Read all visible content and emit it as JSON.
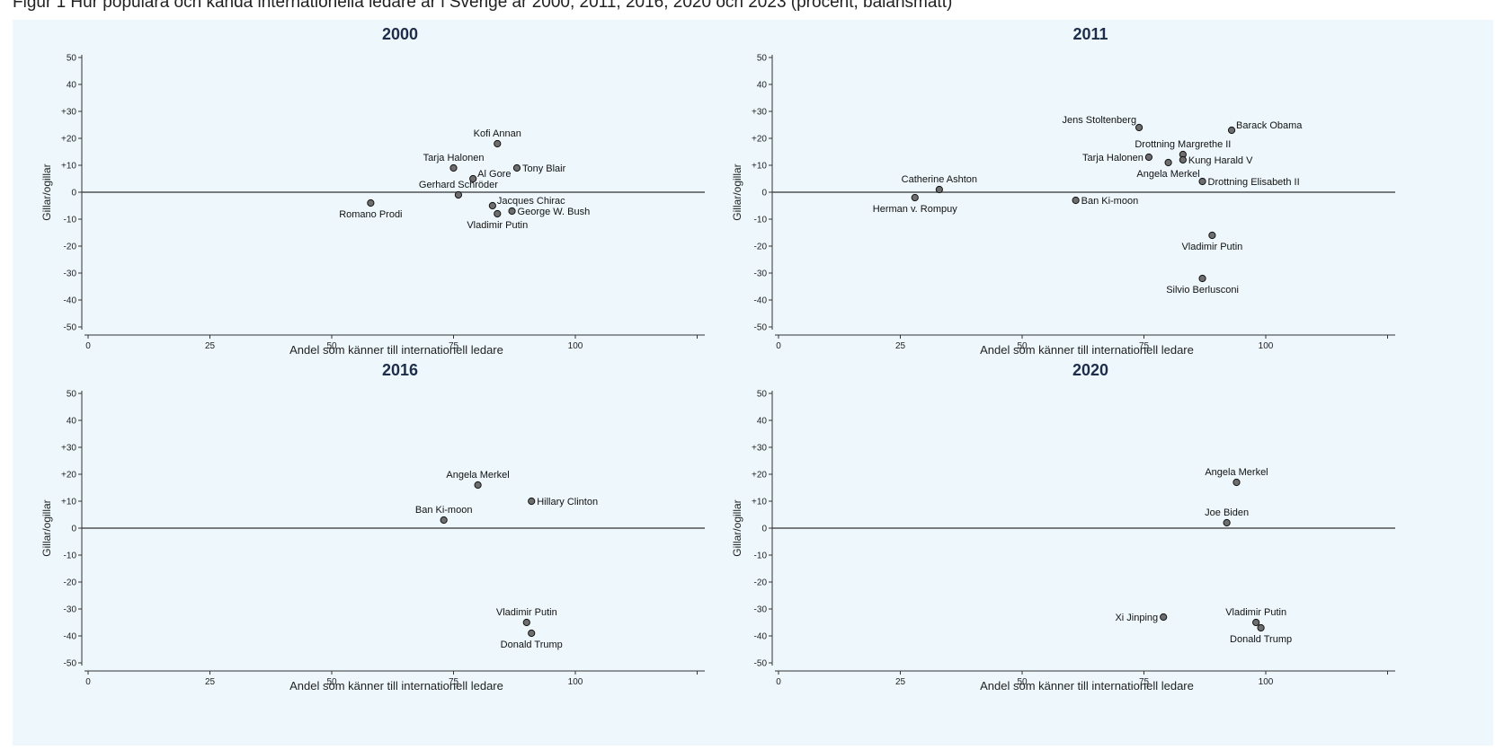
{
  "caption": "Figur 1  Hur populära och kända internationella ledare är i Sverige år 2000, 2011, 2016, 2020 och 2023 (procent, balansmått)",
  "colors": {
    "background": "#eef8fc",
    "marker": "#6e6e6e",
    "axis": "#333333",
    "title": "#1d2d4a"
  },
  "chart_data": [
    {
      "type": "scatter",
      "title": "2000",
      "xlabel": "Andel som känner till internationell ledare",
      "ylabel": "Gillar/ogillar",
      "xlim": [
        0,
        125
      ],
      "ylim": [
        -50,
        50
      ],
      "xticks": [
        "0",
        "25",
        "50",
        "75",
        "100"
      ],
      "yticks": [
        "50",
        "40",
        "+30",
        "+20",
        "+10",
        "0",
        "-10",
        "-20",
        "-30",
        "-40",
        "-50"
      ],
      "points": [
        {
          "name": "Kofi Annan",
          "x": 84,
          "y": 18,
          "pos": "top"
        },
        {
          "name": "Tarja Halonen",
          "x": 75,
          "y": 9,
          "pos": "top"
        },
        {
          "name": "Tony Blair",
          "x": 88,
          "y": 9,
          "pos": "right"
        },
        {
          "name": "Al Gore",
          "x": 79,
          "y": 5,
          "pos": "right-up"
        },
        {
          "name": "Gerhard Schröder",
          "x": 76,
          "y": -1,
          "pos": "top"
        },
        {
          "name": "Romano Prodi",
          "x": 58,
          "y": -4,
          "pos": "bottom"
        },
        {
          "name": "Jacques Chirac",
          "x": 83,
          "y": -5,
          "pos": "right-up"
        },
        {
          "name": "George W. Bush",
          "x": 87,
          "y": -7,
          "pos": "right"
        },
        {
          "name": "Vladimir Putin",
          "x": 84,
          "y": -8,
          "pos": "bottom"
        }
      ]
    },
    {
      "type": "scatter",
      "title": "2011",
      "xlabel": "Andel som känner till internationell ledare",
      "ylabel": "Gillar/ogillar",
      "xlim": [
        0,
        125
      ],
      "ylim": [
        -50,
        50
      ],
      "xticks": [
        "0",
        "25",
        "50",
        "75",
        "100"
      ],
      "yticks": [
        "50",
        "40",
        "+30",
        "+20",
        "+10",
        "0",
        "-10",
        "-20",
        "-30",
        "-40",
        "-50"
      ],
      "points": [
        {
          "name": "Jens Stoltenberg",
          "x": 74,
          "y": 24,
          "pos": "top-left"
        },
        {
          "name": "Barack Obama",
          "x": 93,
          "y": 23,
          "pos": "right-up"
        },
        {
          "name": "Drottning Margrethe II",
          "x": 83,
          "y": 14,
          "pos": "top"
        },
        {
          "name": "Tarja Halonen",
          "x": 76,
          "y": 13,
          "pos": "left"
        },
        {
          "name": "Kung Harald V",
          "x": 83,
          "y": 12,
          "pos": "right"
        },
        {
          "name": "Angela Merkel",
          "x": 80,
          "y": 11,
          "pos": "bottom"
        },
        {
          "name": "Drottning Elisabeth II",
          "x": 87,
          "y": 4,
          "pos": "right"
        },
        {
          "name": "Catherine Ashton",
          "x": 33,
          "y": 1,
          "pos": "top"
        },
        {
          "name": "Herman v. Rompuy",
          "x": 28,
          "y": -2,
          "pos": "bottom"
        },
        {
          "name": "Ban Ki-moon",
          "x": 61,
          "y": -3,
          "pos": "right"
        },
        {
          "name": "Vladimir Putin",
          "x": 89,
          "y": -16,
          "pos": "bottom"
        },
        {
          "name": "Silvio Berlusconi",
          "x": 87,
          "y": -32,
          "pos": "bottom"
        }
      ]
    },
    {
      "type": "scatter",
      "title": "2016",
      "xlabel": "Andel som känner till internationell ledare",
      "ylabel": "Gillar/ogillar",
      "xlim": [
        0,
        125
      ],
      "ylim": [
        -50,
        50
      ],
      "xticks": [
        "0",
        "25",
        "50",
        "75",
        "100"
      ],
      "yticks": [
        "50",
        "40",
        "+30",
        "+20",
        "+10",
        "0",
        "-10",
        "-20",
        "-30",
        "-40",
        "-50"
      ],
      "points": [
        {
          "name": "Angela Merkel",
          "x": 80,
          "y": 16,
          "pos": "top"
        },
        {
          "name": "Hillary Clinton",
          "x": 91,
          "y": 10,
          "pos": "right"
        },
        {
          "name": "Ban Ki-moon",
          "x": 73,
          "y": 3,
          "pos": "top"
        },
        {
          "name": "Vladimir Putin",
          "x": 90,
          "y": -35,
          "pos": "top"
        },
        {
          "name": "Donald Trump",
          "x": 91,
          "y": -39,
          "pos": "bottom"
        }
      ]
    },
    {
      "type": "scatter",
      "title": "2020",
      "xlabel": "Andel som känner till internationell ledare",
      "ylabel": "Gillar/ogillar",
      "xlim": [
        0,
        125
      ],
      "ylim": [
        -50,
        50
      ],
      "xticks": [
        "0",
        "25",
        "50",
        "75",
        "100"
      ],
      "yticks": [
        "50",
        "40",
        "+30",
        "+20",
        "+10",
        "0",
        "-10",
        "-20",
        "-30",
        "-40",
        "-50"
      ],
      "points": [
        {
          "name": "Angela Merkel",
          "x": 94,
          "y": 17,
          "pos": "top"
        },
        {
          "name": "Joe Biden",
          "x": 92,
          "y": 2,
          "pos": "top"
        },
        {
          "name": "Xi Jinping",
          "x": 79,
          "y": -33,
          "pos": "left"
        },
        {
          "name": "Vladimir Putin",
          "x": 98,
          "y": -35,
          "pos": "top"
        },
        {
          "name": "Donald Trump",
          "x": 99,
          "y": -37,
          "pos": "bottom"
        }
      ]
    }
  ]
}
